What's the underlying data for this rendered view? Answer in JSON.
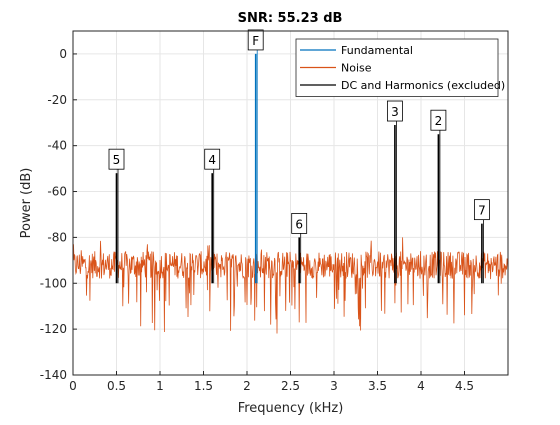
{
  "chart_data": {
    "type": "line",
    "title": "SNR:  55.23 dB",
    "xlabel": "Frequency (kHz)",
    "ylabel": "Power (dB)",
    "xlim": [
      0,
      5
    ],
    "ylim": [
      -140,
      10
    ],
    "xticks": [
      0,
      0.5,
      1,
      1.5,
      2,
      2.5,
      3,
      3.5,
      4,
      4.5
    ],
    "xtick_labels": [
      "0",
      "0.5",
      "1",
      "1.5",
      "2",
      "2.5",
      "3",
      "3.5",
      "4",
      "4.5"
    ],
    "yticks": [
      -140,
      -120,
      -100,
      -80,
      -60,
      -40,
      -20,
      0
    ],
    "ytick_labels": [
      "-140",
      "-120",
      "-100",
      "-80",
      "-60",
      "-40",
      "-20",
      "0"
    ],
    "grid": true,
    "legend_position": "top-right",
    "noise_floor_db": -92,
    "series": [
      {
        "name": "Fundamental",
        "color": "#0072BD",
        "spikes": [
          {
            "x": 2.1,
            "y_top": 0,
            "y_bottom": -100
          }
        ]
      },
      {
        "name": "Noise",
        "color": "#D95319",
        "approx_level_db": [
          -105,
          -82
        ]
      },
      {
        "name": "DC and Harmonics (excluded)",
        "color": "#000000",
        "spikes": [
          {
            "x": 0.5,
            "y_top": -52,
            "y_bottom": -100
          },
          {
            "x": 1.6,
            "y_top": -52,
            "y_bottom": -100
          },
          {
            "x": 2.6,
            "y_top": -80,
            "y_bottom": -100
          },
          {
            "x": 3.7,
            "y_top": -31,
            "y_bottom": -100
          },
          {
            "x": 4.2,
            "y_top": -35,
            "y_bottom": -100
          },
          {
            "x": 4.7,
            "y_top": -74,
            "y_bottom": -100
          }
        ]
      }
    ],
    "markers": [
      {
        "label": "F",
        "x": 2.1,
        "y": 0,
        "color": "#0072BD"
      },
      {
        "label": "2",
        "x": 4.2,
        "y": -35,
        "color": "#000000"
      },
      {
        "label": "3",
        "x": 3.7,
        "y": -31,
        "color": "#000000"
      },
      {
        "label": "4",
        "x": 1.6,
        "y": -52,
        "color": "#000000"
      },
      {
        "label": "5",
        "x": 0.5,
        "y": -52,
        "color": "#000000"
      },
      {
        "label": "6",
        "x": 2.6,
        "y": -80,
        "color": "#000000"
      },
      {
        "label": "7",
        "x": 4.7,
        "y": -74,
        "color": "#000000"
      }
    ]
  }
}
